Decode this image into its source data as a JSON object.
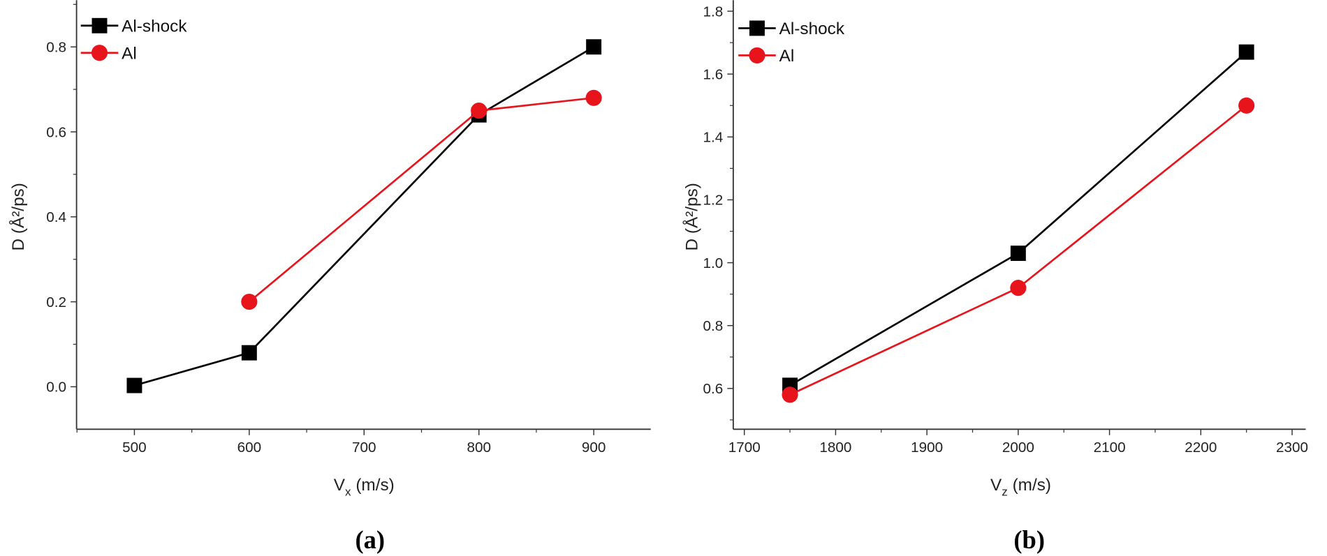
{
  "chart_data": [
    {
      "type": "line",
      "panel_label": "(a)",
      "xlabel": "V",
      "xlabel_sub": "x",
      "xlabel_unit": " (m/s)",
      "ylabel": "D (Å²/ps)",
      "xlim": [
        450,
        950
      ],
      "ylim": [
        -0.1,
        0.91
      ],
      "xticks": [
        "500",
        "600",
        "700",
        "800",
        "900"
      ],
      "yticks": [
        "0.0",
        "0.2",
        "0.4",
        "0.6",
        "0.8"
      ],
      "legend": "top-left",
      "series": [
        {
          "name": "Al-shock",
          "color": "#000000",
          "marker": "square",
          "x": [
            500,
            600,
            800,
            900
          ],
          "y": [
            0.003,
            0.08,
            0.64,
            0.8
          ]
        },
        {
          "name": "Al",
          "color": "#e8141c",
          "marker": "circle",
          "x": [
            600,
            800,
            900
          ],
          "y": [
            0.2,
            0.65,
            0.68
          ]
        }
      ]
    },
    {
      "type": "line",
      "panel_label": "(b)",
      "xlabel": "V",
      "xlabel_sub": "z",
      "xlabel_unit": " (m/s)",
      "ylabel": "D (Å²/ps)",
      "xlim": [
        1690,
        2300
      ],
      "ylim": [
        0.47,
        1.835
      ],
      "xticks": [
        "1700",
        "1800",
        "1900",
        "2000",
        "2100",
        "2200",
        "2300"
      ],
      "yticks": [
        "0.6",
        "0.8",
        "1.0",
        "1.2",
        "1.4",
        "1.6",
        "1.8"
      ],
      "legend": "top-left",
      "series": [
        {
          "name": "Al-shock",
          "color": "#000000",
          "marker": "square",
          "x": [
            1750,
            2000,
            2250
          ],
          "y": [
            0.61,
            1.03,
            1.67
          ]
        },
        {
          "name": "Al",
          "color": "#e8141c",
          "marker": "circle",
          "x": [
            1750,
            2000,
            2250
          ],
          "y": [
            0.58,
            0.92,
            1.5
          ]
        }
      ]
    }
  ]
}
